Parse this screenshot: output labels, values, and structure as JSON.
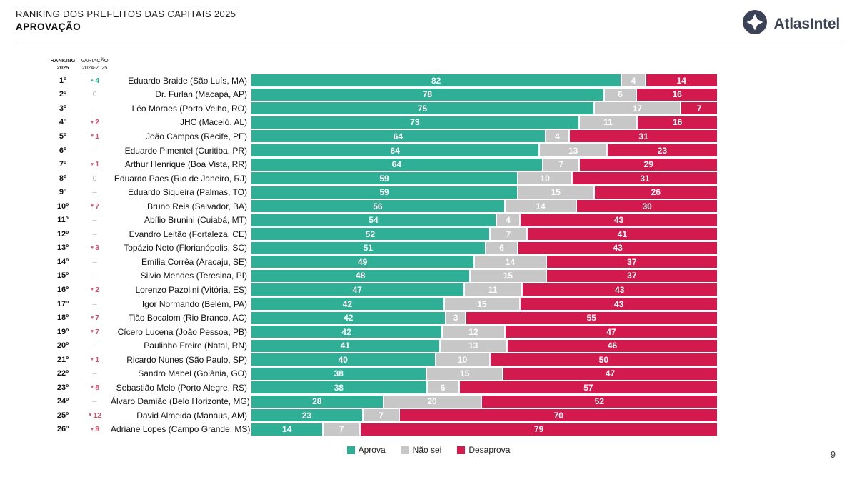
{
  "header": {
    "title": "RANKING DOS PREFEITOS DAS CAPITAIS 2025",
    "subtitle": "APROVAÇÃO",
    "brand": "AtlasIntel"
  },
  "columns": {
    "ranking_line1": "RANKING",
    "ranking_line2": "2025",
    "variation_line1": "VARIAÇÃO",
    "variation_line2": "2024-2025"
  },
  "colors": {
    "aprova": "#2FAF96",
    "nao_sei": "#C7C7C7",
    "desaprova": "#D31A4F",
    "variation_up": "#2FAF96",
    "variation_down": "#D4506C",
    "brand_slate": "#3D4356"
  },
  "legend": [
    {
      "label": "Aprova",
      "color": "#2FAF96"
    },
    {
      "label": "Não sei",
      "color": "#C7C7C7"
    },
    {
      "label": "Desaprova",
      "color": "#D31A4F"
    }
  ],
  "page_number": "9",
  "chart_data": {
    "type": "bar",
    "orientation": "horizontal",
    "stacked": true,
    "xlim": [
      0,
      100
    ],
    "series_names": [
      "Aprova",
      "Não sei",
      "Desaprova"
    ],
    "rows": [
      {
        "rank": "1º",
        "variation_dir": "up",
        "variation_value": "4",
        "name": "Eduardo Braide (São Luís, MA)",
        "aprova": 82,
        "nao_sei": 4,
        "desaprova": 14
      },
      {
        "rank": "2º",
        "variation_dir": "zero",
        "variation_value": "0",
        "name": "Dr. Furlan (Macapá, AP)",
        "aprova": 78,
        "nao_sei": 6,
        "desaprova": 16
      },
      {
        "rank": "3º",
        "variation_dir": "none",
        "variation_value": "–",
        "name": "Léo Moraes (Porto Velho, RO)",
        "aprova": 75,
        "nao_sei": 17,
        "desaprova": 7
      },
      {
        "rank": "4º",
        "variation_dir": "down",
        "variation_value": "2",
        "name": "JHC (Maceió, AL)",
        "aprova": 73,
        "nao_sei": 11,
        "desaprova": 16
      },
      {
        "rank": "5º",
        "variation_dir": "down",
        "variation_value": "1",
        "name": "João Campos (Recife, PE)",
        "aprova": 64,
        "nao_sei": 4,
        "desaprova": 31
      },
      {
        "rank": "6º",
        "variation_dir": "none",
        "variation_value": "–",
        "name": "Eduardo Pimentel (Curitiba, PR)",
        "aprova": 64,
        "nao_sei": 13,
        "desaprova": 23
      },
      {
        "rank": "7º",
        "variation_dir": "down",
        "variation_value": "1",
        "name": "Arthur Henrique (Boa Vista, RR)",
        "aprova": 64,
        "nao_sei": 7,
        "desaprova": 29
      },
      {
        "rank": "8º",
        "variation_dir": "zero",
        "variation_value": "0",
        "name": "Eduardo Paes (Rio de Janeiro, RJ)",
        "aprova": 59,
        "nao_sei": 10,
        "desaprova": 31
      },
      {
        "rank": "9º",
        "variation_dir": "none",
        "variation_value": "–",
        "name": "Eduardo Siqueira (Palmas, TO)",
        "aprova": 59,
        "nao_sei": 15,
        "desaprova": 26
      },
      {
        "rank": "10º",
        "variation_dir": "down",
        "variation_value": "7",
        "name": "Bruno Reis (Salvador, BA)",
        "aprova": 56,
        "nao_sei": 14,
        "desaprova": 30
      },
      {
        "rank": "11º",
        "variation_dir": "none",
        "variation_value": "–",
        "name": "Abílio Brunini (Cuiabá, MT)",
        "aprova": 54,
        "nao_sei": 4,
        "desaprova": 43
      },
      {
        "rank": "12º",
        "variation_dir": "none",
        "variation_value": "–",
        "name": "Evandro Leitão (Fortaleza, CE)",
        "aprova": 52,
        "nao_sei": 7,
        "desaprova": 41
      },
      {
        "rank": "13º",
        "variation_dir": "down",
        "variation_value": "3",
        "name": "Topázio Neto (Florianópolis, SC)",
        "aprova": 51,
        "nao_sei": 6,
        "desaprova": 43
      },
      {
        "rank": "14º",
        "variation_dir": "none",
        "variation_value": "–",
        "name": "Emília Corrêa (Aracaju, SE)",
        "aprova": 49,
        "nao_sei": 14,
        "desaprova": 37
      },
      {
        "rank": "15º",
        "variation_dir": "none",
        "variation_value": "–",
        "name": "Silvio Mendes (Teresina, PI)",
        "aprova": 48,
        "nao_sei": 15,
        "desaprova": 37
      },
      {
        "rank": "16º",
        "variation_dir": "down",
        "variation_value": "2",
        "name": "Lorenzo Pazolini (Vitória, ES)",
        "aprova": 47,
        "nao_sei": 11,
        "desaprova": 43
      },
      {
        "rank": "17º",
        "variation_dir": "none",
        "variation_value": "–",
        "name": "Igor Normando (Belém, PA)",
        "aprova": 42,
        "nao_sei": 15,
        "desaprova": 43
      },
      {
        "rank": "18º",
        "variation_dir": "down",
        "variation_value": "7",
        "name": "Tião Bocalom (Rio Branco, AC)",
        "aprova": 42,
        "nao_sei": 3,
        "desaprova": 55
      },
      {
        "rank": "19º",
        "variation_dir": "down",
        "variation_value": "7",
        "name": "Cícero Lucena (João Pessoa, PB)",
        "aprova": 42,
        "nao_sei": 12,
        "desaprova": 47
      },
      {
        "rank": "20º",
        "variation_dir": "none",
        "variation_value": "–",
        "name": "Paulinho Freire (Natal, RN)",
        "aprova": 41,
        "nao_sei": 13,
        "desaprova": 46
      },
      {
        "rank": "21º",
        "variation_dir": "down",
        "variation_value": "1",
        "name": "Ricardo Nunes (São Paulo, SP)",
        "aprova": 40,
        "nao_sei": 10,
        "desaprova": 50
      },
      {
        "rank": "22º",
        "variation_dir": "none",
        "variation_value": "–",
        "name": "Sandro Mabel (Goiânia, GO)",
        "aprova": 38,
        "nao_sei": 15,
        "desaprova": 47
      },
      {
        "rank": "23º",
        "variation_dir": "down",
        "variation_value": "8",
        "name": "Sebastião Melo (Porto Alegre, RS)",
        "aprova": 38,
        "nao_sei": 6,
        "desaprova": 57
      },
      {
        "rank": "24º",
        "variation_dir": "none",
        "variation_value": "–",
        "name": "Álvaro Damião (Belo Horizonte, MG)",
        "aprova": 28,
        "nao_sei": 20,
        "desaprova": 52
      },
      {
        "rank": "25º",
        "variation_dir": "down",
        "variation_value": "12",
        "name": "David Almeida (Manaus, AM)",
        "aprova": 23,
        "nao_sei": 7,
        "desaprova": 70
      },
      {
        "rank": "26º",
        "variation_dir": "down",
        "variation_value": "9",
        "name": "Adriane Lopes (Campo Grande, MS)",
        "aprova": 14,
        "nao_sei": 7,
        "desaprova": 79
      }
    ]
  }
}
